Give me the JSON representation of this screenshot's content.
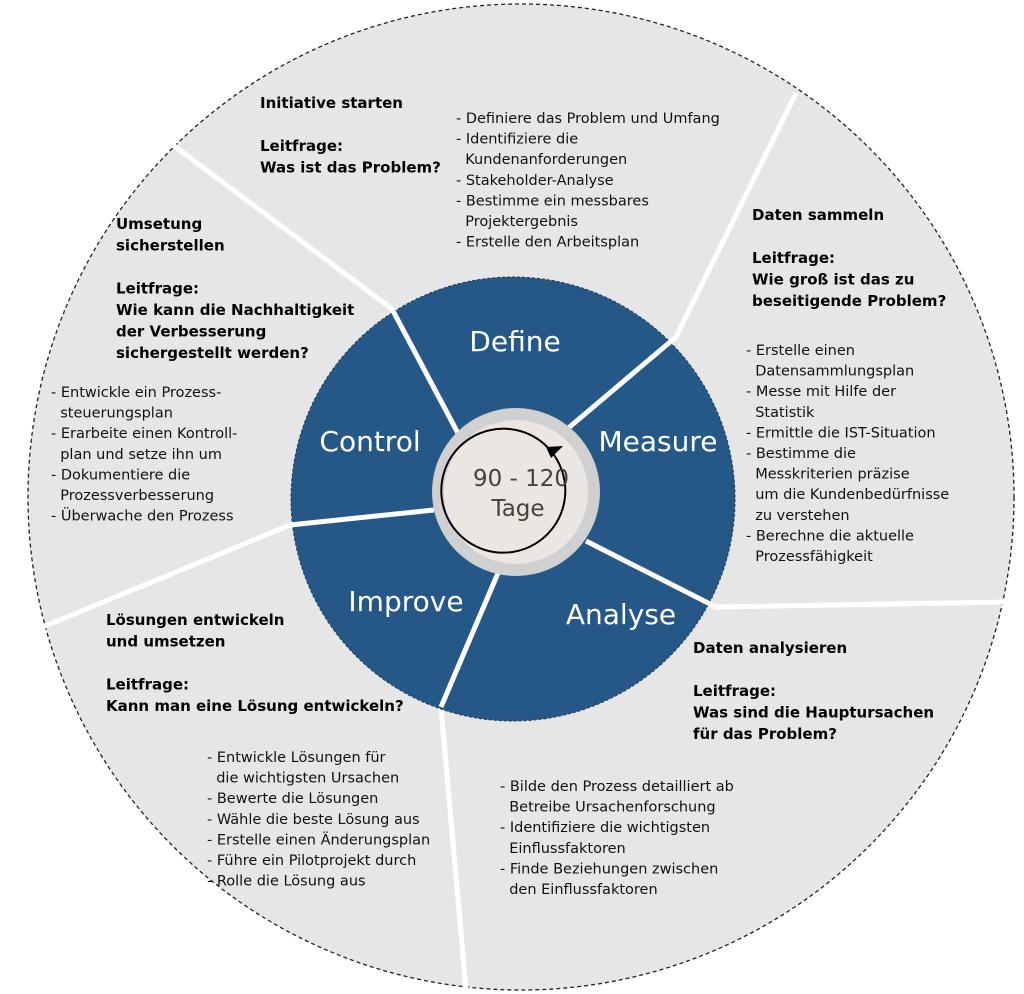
{
  "center": {
    "line1": "90 - 120",
    "line2": "Tage"
  },
  "phases": {
    "define": "Define",
    "measure": "Measure",
    "analyse": "Analyse",
    "improve": "Improve",
    "control": "Control"
  },
  "sections": {
    "define": {
      "title": [
        "Initiative starten"
      ],
      "question_label": "Leitfrage:",
      "question": [
        "Was ist das Problem?"
      ],
      "items": [
        "- Definiere das Problem und Umfang",
        "- Identifiziere die",
        "  Kundenanforderungen",
        "- Stakeholder-Analyse",
        "- Bestimme ein messbares",
        "  Projektergebnis",
        "- Erstelle den Arbeitsplan"
      ]
    },
    "measure": {
      "title": [
        "Daten sammeln"
      ],
      "question_label": "Leitfrage:",
      "question": [
        "Wie groß ist das zu",
        "beseitigende Problem?"
      ],
      "items": [
        "- Erstelle einen",
        "  Datensammlungsplan",
        "- Messe mit Hilfe der",
        "  Statistik",
        "- Ermittle die IST-Situation",
        "- Bestimme die",
        "  Messkriterien präzise",
        "  um die Kundenbedürfnisse",
        "  zu verstehen",
        "- Berechne die aktuelle",
        "  Prozessfähigkeit"
      ]
    },
    "analyse": {
      "title": [
        "Daten analysieren"
      ],
      "question_label": "Leitfrage:",
      "question": [
        "Was sind die Hauptursachen",
        "für das Problem?"
      ],
      "items": [
        "- Bilde den Prozess detailliert ab",
        "  Betreibe Ursachenforschung",
        "- Identifiziere die wichtigsten",
        "  Einflussfaktoren",
        "- Finde Beziehungen zwischen",
        "  den Einflussfaktoren"
      ]
    },
    "improve": {
      "title": [
        "Lösungen entwickeln",
        "und umsetzen"
      ],
      "question_label": "Leitfrage:",
      "question": [
        "Kann man eine Lösung entwickeln?"
      ],
      "items": [
        "- Entwickle Lösungen für",
        "  die wichtigsten Ursachen",
        "- Bewerte die Lösungen",
        "- Wähle die beste Lösung aus",
        "- Erstelle einen Änderungsplan",
        "- Führe ein Pilotprojekt durch",
        "- Rolle die Lösung aus"
      ]
    },
    "control": {
      "title": [
        "Umsetung",
        "sicherstellen"
      ],
      "question_label": "Leitfrage:",
      "question": [
        "Wie kann die Nachhaltigkeit",
        "der Verbesserung",
        "sichergestellt werden?"
      ],
      "items": [
        "- Entwickle ein Prozess-",
        "  steuerungsplan",
        "- Erarbeite einen Kontroll-",
        "  plan und setze ihn um",
        "- Dokumentiere die",
        "  Prozessverbesserung",
        "- Überwache den Prozess"
      ]
    }
  },
  "colors": {
    "outer_fill": "#e6e6e6",
    "inner_fill": "#265887",
    "hub_ring": "#d0d0d0",
    "hub_fill": "#ebe6e2",
    "divider": "#ffffff",
    "text": "#000000"
  },
  "icons": {
    "cycle": "circular-arrow-icon"
  }
}
